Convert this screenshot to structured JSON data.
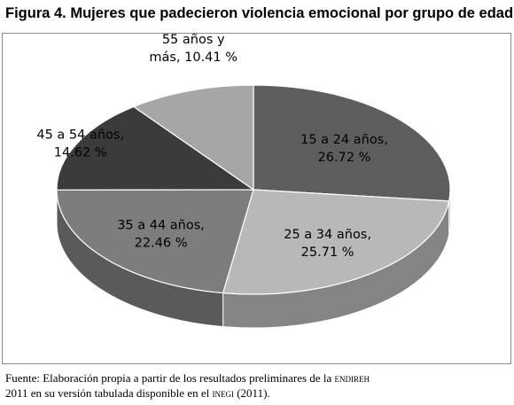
{
  "title": "Figura 4. Mujeres que padecieron violencia emocional por grupo de edad",
  "source": {
    "line1_text": "Fuente: Elaboración propia a partir de los resultados preliminares de la ",
    "line1_sc": "endireh",
    "line2_text_a": "2011 en su versión tabulada disponible en el ",
    "line2_sc": "inegi",
    "line2_text_b": " (2011)."
  },
  "chart_data": {
    "type": "pie",
    "title": "Figura 4. Mujeres que padecieron violencia emocional por grupo de edad",
    "slices": [
      {
        "label_line1": "15 a 24 años,",
        "label_line2": "26.72 %",
        "value": 26.72,
        "color": "#5e5e5e"
      },
      {
        "label_line1": "25 a 34 años,",
        "label_line2": "25.71 %",
        "value": 25.71,
        "color": "#b8b8b8"
      },
      {
        "label_line1": "35 a 44 años,",
        "label_line2": "22.46 %",
        "value": 22.46,
        "color": "#7d7d7d"
      },
      {
        "label_line1": "45 a 54 años,",
        "label_line2": "14.62 %",
        "value": 14.62,
        "color": "#3b3b3b"
      },
      {
        "label_line1": "55 años y",
        "label_line2": "más, 10.41 %",
        "value": 10.41,
        "color": "#a6a6a6"
      }
    ]
  }
}
